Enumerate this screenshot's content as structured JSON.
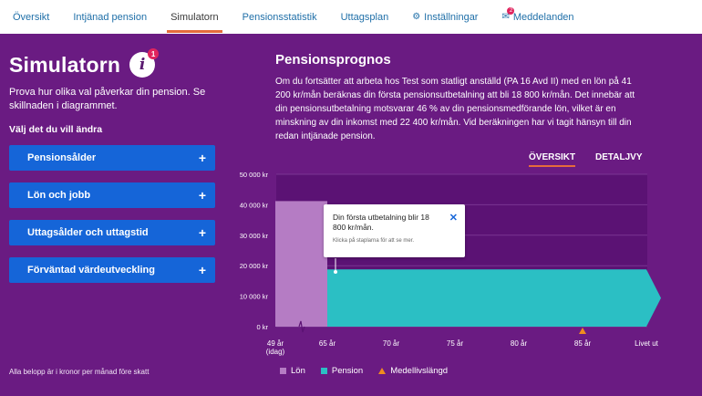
{
  "nav": {
    "tabs": [
      {
        "label": "Översikt"
      },
      {
        "label": "Intjänad pension"
      },
      {
        "label": "Simulatorn"
      },
      {
        "label": "Pensionsstatistik"
      },
      {
        "label": "Uttagsplan"
      },
      {
        "label": "Inställningar",
        "icon": "gear-icon"
      },
      {
        "label": "Meddelanden",
        "icon": "mail-icon",
        "badge": "2"
      }
    ],
    "active_index": 2
  },
  "left": {
    "title": "Simulatorn",
    "info_badge": "1",
    "intro": "Prova hur olika val påverkar din pension. Se skillnaden i diagrammet.",
    "choose_label": "Välj det du vill ändra",
    "accordions": [
      {
        "label": "Pensionsålder"
      },
      {
        "label": "Lön och jobb"
      },
      {
        "label": "Uttagsålder och uttagstid"
      },
      {
        "label": "Förväntad värdeutveckling"
      }
    ],
    "plus": "+",
    "footnote": "Alla belopp är i kronor per månad före skatt"
  },
  "right": {
    "title": "Pensionsprognos",
    "description": "Om du fortsätter att arbeta hos Test som statligt anställd (PA 16 Avd II) med en lön på 41 200 kr/mån beräknas din första pensionsutbetalning att bli 18 800 kr/mån. Det innebär att din pensionsutbetalning motsvarar 46 % av din pensionsmedförande lön, vilket är en minskning av din inkomst med 22 400 kr/mån. Vid beräkningen har vi tagit hänsyn till din redan intjänade pension.",
    "view_tabs": [
      {
        "label": "ÖVERSIKT"
      },
      {
        "label": "DETALJVY"
      }
    ],
    "tooltip": {
      "main": "Din första utbetalning blir 18 800 kr/mån.",
      "sub": "Klicka på staplarna för att se mer.",
      "close": "✕"
    }
  },
  "chart_data": {
    "type": "area",
    "y_ticks": [
      "50 000 kr",
      "40 000 kr",
      "30 000 kr",
      "20 000 kr",
      "10 000 kr",
      "0 kr"
    ],
    "ylim": [
      0,
      50000
    ],
    "x_ticks": [
      "49 år",
      "65 år",
      "70 år",
      "75 år",
      "80 år",
      "85 år",
      "Livet ut"
    ],
    "x_tick_sub": "(idag)",
    "series": [
      {
        "name": "Lön",
        "color": "#b57cc4",
        "from": "49 år",
        "to": "65 år",
        "value": 41200
      },
      {
        "name": "Pension",
        "color": "#2bbfc4",
        "from": "65 år",
        "to": "Livet ut",
        "value": 18800
      }
    ],
    "markers": [
      {
        "name": "Medellivslängd",
        "at": "85 år",
        "color": "#f08c1e"
      }
    ],
    "legend": [
      {
        "label": "Lön",
        "color": "#b57cc4",
        "shape": "square"
      },
      {
        "label": "Pension",
        "color": "#2bbfc4",
        "shape": "square"
      },
      {
        "label": "Medellivslängd",
        "color": "#f08c1e",
        "shape": "triangle"
      }
    ],
    "legend_position": "bottom"
  }
}
